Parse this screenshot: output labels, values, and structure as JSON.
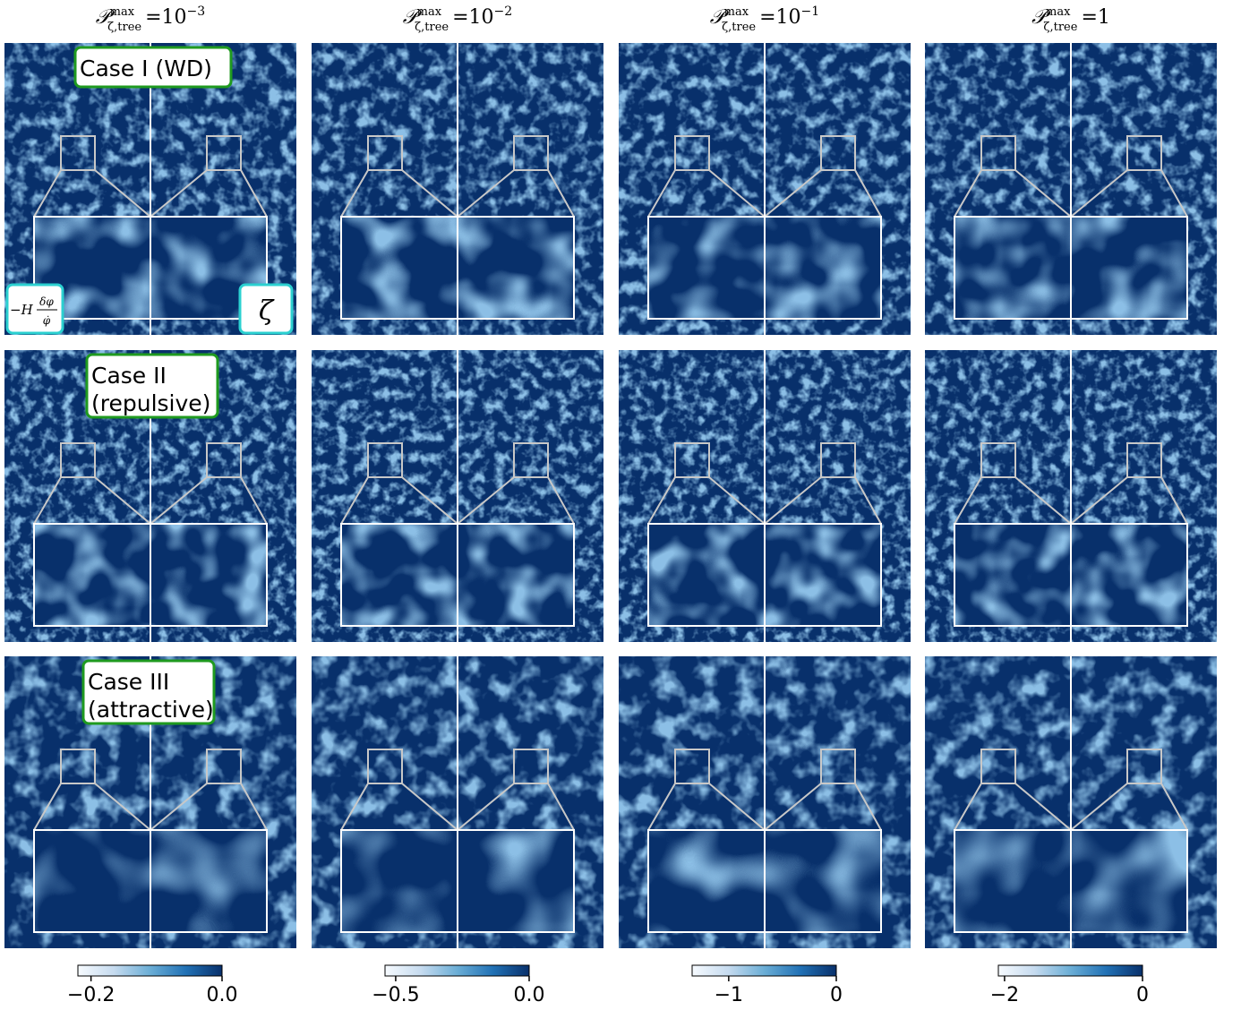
{
  "columns": [
    {
      "title": {
        "symbol": "𝒫",
        "sup": "max",
        "sub": "ζ,tree",
        "relation": "=",
        "value": "10",
        "exponent": "−3"
      },
      "colorbar": {
        "lim": [
          -0.22,
          0
        ],
        "ticks": [
          {
            "value": -0.2,
            "label": "−0.2"
          },
          {
            "value": 0,
            "label": "0.0"
          }
        ]
      }
    },
    {
      "title": {
        "symbol": "𝒫",
        "sup": "max",
        "sub": "ζ,tree",
        "relation": "=",
        "value": "10",
        "exponent": "−2"
      },
      "colorbar": {
        "lim": [
          -0.54,
          0
        ],
        "ticks": [
          {
            "value": -0.5,
            "label": "−0.5"
          },
          {
            "value": 0,
            "label": "0.0"
          }
        ]
      }
    },
    {
      "title": {
        "symbol": "𝒫",
        "sup": "max",
        "sub": "ζ,tree",
        "relation": "=",
        "value": "10",
        "exponent": "−1"
      },
      "colorbar": {
        "lim": [
          -1.34,
          0
        ],
        "ticks": [
          {
            "value": -1,
            "label": "−1"
          },
          0
        ]
      }
    },
    {
      "title": {
        "symbol": "𝒫",
        "sup": "max",
        "sub": "ζ,tree",
        "relation": "=",
        "value": "1"
      },
      "colorbar": {
        "lim": [
          -2.09,
          0
        ],
        "ticks": [
          {
            "value": -2,
            "label": "−2"
          },
          0
        ]
      }
    }
  ],
  "rows": [
    {
      "label": [
        "Case I (WD)"
      ]
    },
    {
      "label": [
        "Case II",
        "(repulsive)"
      ]
    },
    {
      "label": [
        "Case III",
        "(attractive)"
      ]
    }
  ],
  "panel_labels": {
    "left": {
      "prefix": "−H",
      "numerator": "δφ",
      "denominator": "φ̇"
    },
    "right": "ζ"
  }
}
